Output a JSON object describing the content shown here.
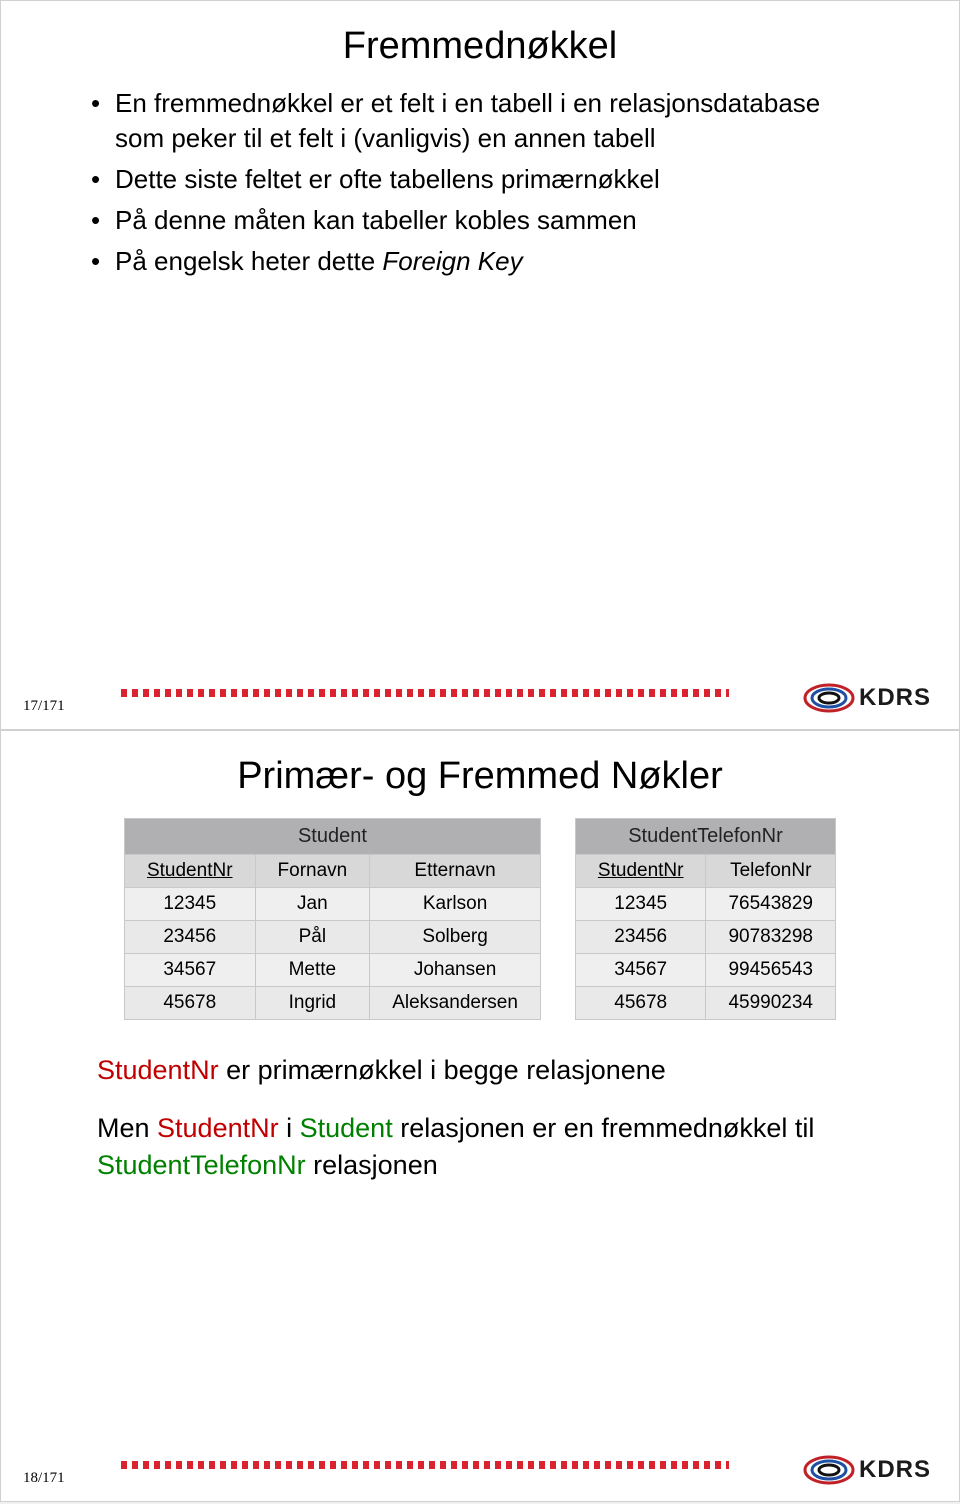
{
  "slide1": {
    "title": "Fremmednøkkel",
    "bullets": [
      "En fremmednøkkel er et felt i en tabell i en relasjonsdatabase som peker til et felt i (vanligvis) en annen tabell",
      "Dette siste feltet er ofte tabellens primærnøkkel",
      "På denne måten kan tabeller kobles sammen",
      "På engelsk heter dette "
    ],
    "bullet4_italic": "Foreign Key",
    "pagenum": "17/171"
  },
  "slide2": {
    "title": "Primær- og Fremmed Nøkler",
    "table_left": {
      "caption": "Student",
      "columns": [
        "StudentNr",
        "Fornavn",
        "Etternavn"
      ],
      "pk_col_index": 0,
      "rows": [
        [
          "12345",
          "Jan",
          "Karlson"
        ],
        [
          "23456",
          "Pål",
          "Solberg"
        ],
        [
          "34567",
          "Mette",
          "Johansen"
        ],
        [
          "45678",
          "Ingrid",
          "Aleksandersen"
        ]
      ]
    },
    "table_right": {
      "caption": "StudentTelefonNr",
      "columns": [
        "StudentNr",
        "TelefonNr"
      ],
      "pk_col_index": 0,
      "rows": [
        [
          "12345",
          "76543829"
        ],
        [
          "23456",
          "90783298"
        ],
        [
          "34567",
          "99456543"
        ],
        [
          "45678",
          "45990234"
        ]
      ]
    },
    "para1_parts": {
      "p1": "StudentNr",
      "p2": " er primærnøkkel i begge relasjonene"
    },
    "para2_parts": {
      "p1": "Men ",
      "p2": "StudentNr",
      "p3": " i ",
      "p4": "Student",
      "p5": " relasjonen er en fremmednøkkel til ",
      "p6": "StudentTelefonNr",
      "p7": " relasjonen"
    },
    "pagenum": "18/171"
  },
  "logo": {
    "text": "KDRS",
    "ring_outer": "#c02127",
    "ring_mid": "#2050a4",
    "ring_inner": "#111111"
  }
}
